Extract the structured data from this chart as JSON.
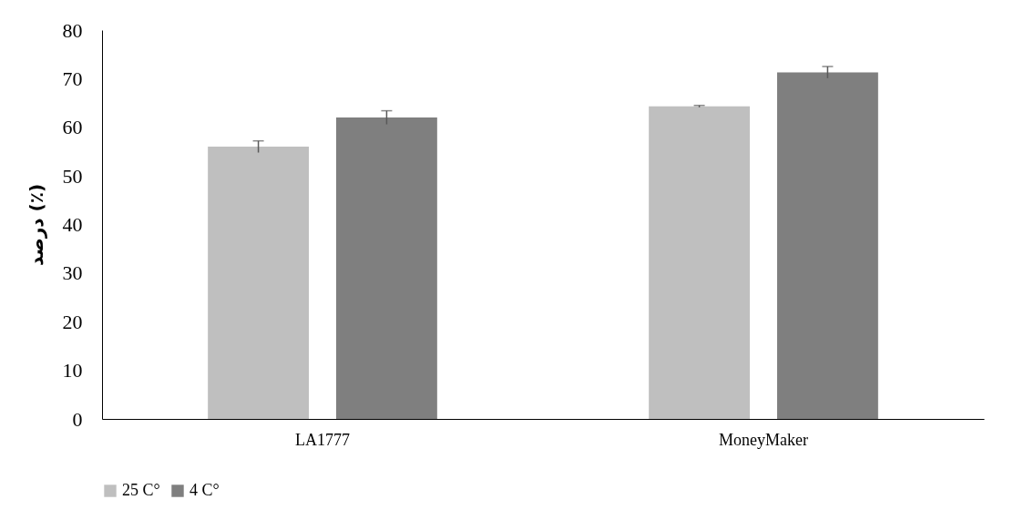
{
  "chart_data": {
    "type": "bar",
    "ylabel": "درصد (٪)",
    "categories": [
      "LA1777",
      "MoneyMaker"
    ],
    "series": [
      {
        "name": "25 C°",
        "color": "#bfbfbf",
        "values": [
          56.0,
          64.3
        ],
        "errors": [
          1.2,
          0.2
        ]
      },
      {
        "name": "4 C°",
        "color": "#7f7f7f",
        "values": [
          62.0,
          71.3
        ],
        "errors": [
          1.4,
          1.2
        ]
      }
    ],
    "ylim": [
      0,
      80
    ],
    "yticks": [
      0,
      10,
      20,
      30,
      40,
      50,
      60,
      70,
      80
    ],
    "grid": false,
    "legend": "bottom"
  }
}
